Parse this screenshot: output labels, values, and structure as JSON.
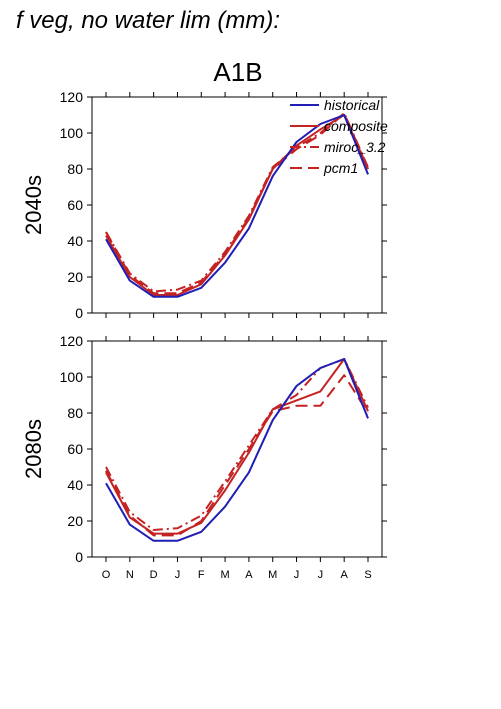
{
  "figure": {
    "title": "f veg, no water lim (mm):",
    "scenario": "A1B"
  },
  "chart_data": [
    {
      "type": "line",
      "row_label": "2040s",
      "categories": [
        "O",
        "N",
        "D",
        "J",
        "F",
        "M",
        "A",
        "M",
        "J",
        "J",
        "A",
        "S"
      ],
      "ylim": [
        0,
        120
      ],
      "yticks": [
        0,
        20,
        40,
        60,
        80,
        100,
        120
      ],
      "grid": false,
      "legend": "top-right",
      "series": [
        {
          "name": "historical",
          "color": "#1f1fb4",
          "dash": "solid",
          "values": [
            41,
            18,
            9,
            9,
            14,
            28,
            47,
            76,
            95,
            105,
            110,
            77
          ]
        },
        {
          "name": "composite",
          "color": "#c42323",
          "dash": "solid",
          "values": [
            43,
            20,
            10,
            10,
            16,
            32,
            52,
            80,
            93,
            102,
            110,
            80
          ]
        },
        {
          "name": "miroc_3.2",
          "color": "#c42323",
          "dash": "dashdot",
          "values": [
            45,
            22,
            12,
            13,
            18,
            34,
            54,
            81,
            92,
            100,
            111,
            81
          ]
        },
        {
          "name": "pcm1",
          "color": "#c42323",
          "dash": "longdash",
          "values": [
            45,
            21,
            11,
            11,
            17,
            33,
            53,
            80,
            91,
            99,
            111,
            80
          ]
        }
      ]
    },
    {
      "type": "line",
      "row_label": "2080s",
      "categories": [
        "O",
        "N",
        "D",
        "J",
        "F",
        "M",
        "A",
        "M",
        "J",
        "J",
        "A",
        "S"
      ],
      "ylim": [
        0,
        120
      ],
      "yticks": [
        0,
        20,
        40,
        60,
        80,
        100,
        120
      ],
      "xtick_labels": [
        "O",
        "N",
        "D",
        "J",
        "F",
        "M",
        "A",
        "M",
        "J",
        "J",
        "A",
        "S"
      ],
      "grid": false,
      "series": [
        {
          "name": "historical",
          "color": "#1f1fb4",
          "dash": "solid",
          "values": [
            41,
            18,
            9,
            9,
            14,
            28,
            47,
            76,
            95,
            105,
            110,
            77
          ]
        },
        {
          "name": "composite",
          "color": "#c42323",
          "dash": "solid",
          "values": [
            47,
            22,
            13,
            13,
            19,
            37,
            58,
            82,
            87,
            92,
            110,
            81
          ]
        },
        {
          "name": "miroc_3.2",
          "color": "#c42323",
          "dash": "dashdot",
          "values": [
            50,
            25,
            15,
            16,
            23,
            42,
            62,
            82,
            90,
            105,
            110,
            83
          ]
        },
        {
          "name": "pcm1",
          "color": "#c42323",
          "dash": "longdash",
          "values": [
            48,
            23,
            12,
            12,
            20,
            40,
            60,
            81,
            84,
            84,
            101,
            80
          ]
        }
      ]
    }
  ]
}
